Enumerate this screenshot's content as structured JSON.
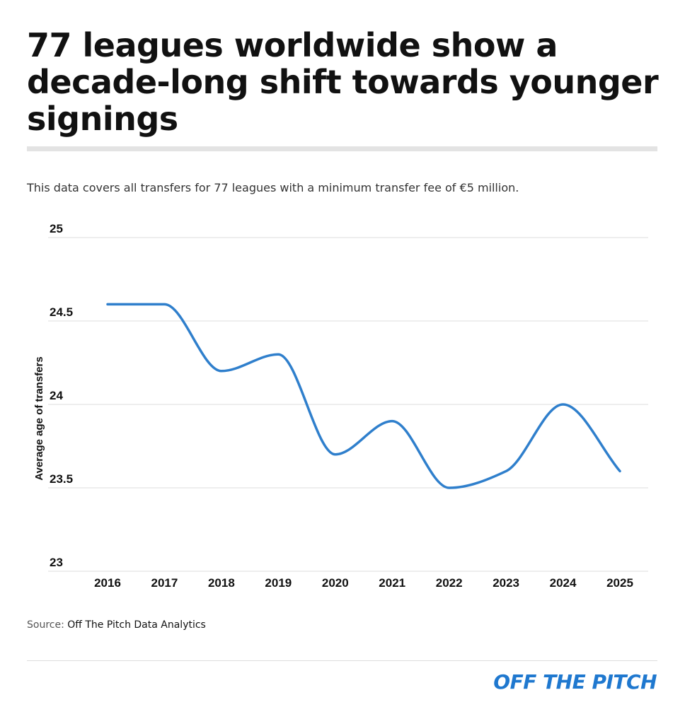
{
  "header": {
    "title": "77 leagues worldwide show a decade-long shift towards younger signings",
    "subtitle": "This data covers all transfers for 77 leagues with a minimum transfer fee of €5 million."
  },
  "chart_data": {
    "type": "line",
    "title": "",
    "xlabel": "",
    "ylabel": "Average age of transfers",
    "categories": [
      "2016",
      "2017",
      "2018",
      "2019",
      "2020",
      "2021",
      "2022",
      "2023",
      "2024",
      "2025"
    ],
    "series": [
      {
        "values": [
          24.6,
          24.6,
          24.2,
          24.3,
          23.7,
          23.9,
          23.5,
          23.6,
          24.0,
          23.6
        ]
      }
    ],
    "ylim": [
      23,
      25
    ],
    "yticks": [
      "23",
      "23.5",
      "24",
      "24.5",
      "25"
    ],
    "grid": true,
    "legend": "none",
    "line_color": "#2f7fcc"
  },
  "footer": {
    "source_label": "Source:",
    "source_value": "Off The Pitch Data Analytics",
    "brand": "OFF THE PITCH",
    "brand_color": "#1f78cf"
  }
}
